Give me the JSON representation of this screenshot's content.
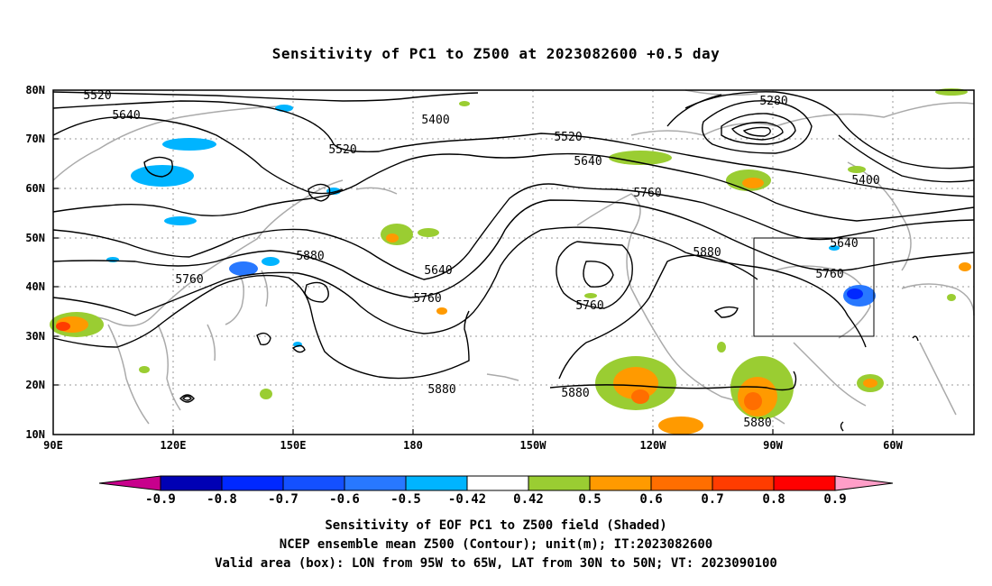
{
  "title": "Sensitivity of PC1 to Z500 at 2023082600 +0.5 day",
  "map": {
    "lon_labels": [
      "90E",
      "120E",
      "150E",
      "180",
      "150W",
      "120W",
      "90W",
      "60W"
    ],
    "lat_labels": [
      "80N",
      "70N",
      "60N",
      "50N",
      "40N",
      "30N",
      "20N",
      "10N"
    ],
    "contour_labels": [
      "5520",
      "5640",
      "5400",
      "5520",
      "5520",
      "5640",
      "5760",
      "5280",
      "5400",
      "5760",
      "5880",
      "5640",
      "5760",
      "5880",
      "5640",
      "5760",
      "5760",
      "5880",
      "5880",
      "5880"
    ],
    "valid_box": {
      "lon": [
        "95W",
        "65W"
      ],
      "lat": [
        "30N",
        "50N"
      ]
    }
  },
  "colorbar": {
    "labels": [
      "-0.9",
      "-0.8",
      "-0.7",
      "-0.6",
      "-0.5",
      "-0.42",
      "0.42",
      "0.5",
      "0.6",
      "0.7",
      "0.8",
      "0.9"
    ],
    "colors": [
      "#c8008c",
      "#0000b4",
      "#0028ff",
      "#1450ff",
      "#2878ff",
      "#00b4ff",
      "#ffffff",
      "#9acd32",
      "#ff9a00",
      "#ff6e00",
      "#ff3c00",
      "#ff0000",
      "#ff9ec8"
    ]
  },
  "captions": [
    "Sensitivity of EOF PC1 to Z500 field (Shaded)",
    "NCEP ensemble mean Z500 (Contour); unit(m); IT:2023082600",
    "Valid area (box): LON from 95W to 65W, LAT from 30N to 50N; VT: 2023090100"
  ]
}
